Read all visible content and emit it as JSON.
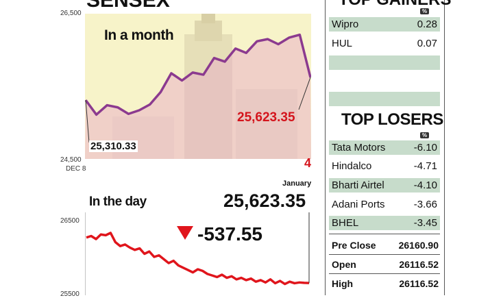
{
  "header": {
    "title": "SENSEX",
    "subtitle": "SENSEX"
  },
  "chart_data": [
    {
      "type": "line",
      "title": "In a month",
      "x_start_label": "DEC 8",
      "x_end_label": "January",
      "x_end_day": "4",
      "ylim": [
        24500,
        26500
      ],
      "yticks": [
        "26,500",
        "24,500"
      ],
      "values": [
        25310,
        25110,
        25240,
        25210,
        25120,
        25170,
        25250,
        25420,
        25680,
        25580,
        25690,
        25660,
        25890,
        25840,
        26020,
        25960,
        26120,
        26150,
        26080,
        26170,
        26210,
        25623
      ],
      "start_label": "25,310.33",
      "end_label": "25,623.35",
      "line_color": "#8b3a8f"
    },
    {
      "type": "line",
      "title": "In the day",
      "ytick": "26500",
      "ytick_bottom": "25500",
      "close_label": "25,623.35",
      "change_label": "-537.55",
      "values": [
        26210,
        26230,
        26190,
        26250,
        26240,
        26270,
        26150,
        26100,
        26120,
        26080,
        26050,
        26070,
        26000,
        26030,
        25960,
        25980,
        25930,
        25880,
        25910,
        25850,
        25820,
        25790,
        25760,
        25800,
        25780,
        25740,
        25720,
        25700,
        25730,
        25690,
        25710,
        25670,
        25690,
        25660,
        25680,
        25640,
        25660,
        25630,
        25670,
        25620,
        25650,
        25610,
        25640,
        25620,
        25630,
        25625,
        25623
      ],
      "line_color": "#e0151c"
    }
  ],
  "gainers": {
    "title": "TOP GAINERS",
    "pct": "%",
    "rows": [
      {
        "name": "Wipro",
        "value": "0.28"
      },
      {
        "name": "HUL",
        "value": "0.07"
      }
    ]
  },
  "losers": {
    "title": "TOP LOSERS",
    "pct": "%",
    "rows": [
      {
        "name": "Tata Motors",
        "value": "-6.10"
      },
      {
        "name": "Hindalco",
        "value": "-4.71"
      },
      {
        "name": "Bharti Airtel",
        "value": "-4.10"
      },
      {
        "name": "Adani Ports",
        "value": "-3.66"
      },
      {
        "name": "BHEL",
        "value": "-3.45"
      }
    ]
  },
  "summary": [
    {
      "name": "Pre Close",
      "value": "26160.90"
    },
    {
      "name": "Open",
      "value": "26116.52"
    },
    {
      "name": "High",
      "value": "26116.52"
    }
  ]
}
